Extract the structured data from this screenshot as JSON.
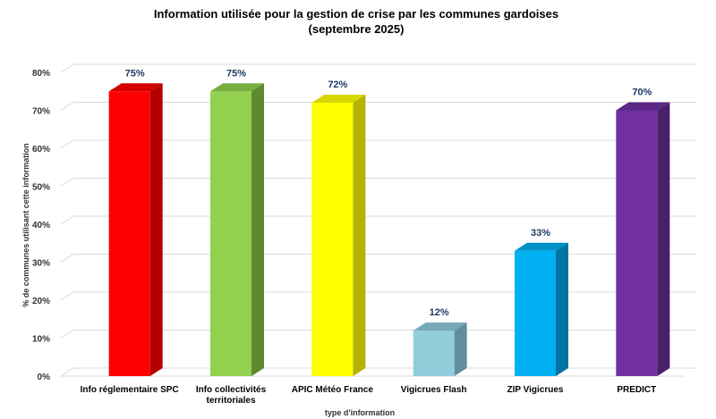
{
  "chart_data": {
    "type": "bar",
    "title_lines": [
      "Information utilisée pour la gestion de crise par les communes gardoises",
      "(septembre 2025)"
    ],
    "xlabel": "type d'information",
    "ylabel": "% de communes utilisant cette information",
    "ylim": [
      0,
      80
    ],
    "yticks": [
      "0%",
      "10%",
      "20%",
      "30%",
      "40%",
      "50%",
      "60%",
      "70%",
      "80%"
    ],
    "grid": true,
    "style": "3d-columns",
    "categories": [
      [
        "Info réglementaire SPC"
      ],
      [
        "Info collectivités",
        "territoriales"
      ],
      [
        "APIC Météo France"
      ],
      [
        "Vigicrues Flash"
      ],
      [
        "ZIP Vigicrues"
      ],
      [
        "PREDICT"
      ]
    ],
    "values": [
      75,
      75,
      72,
      12,
      33,
      70
    ],
    "data_labels": [
      "75%",
      "75%",
      "72%",
      "12%",
      "33%",
      "70%"
    ],
    "colors": [
      "#ff0000",
      "#92d050",
      "#ffff00",
      "#92cddc",
      "#00b0f0",
      "#7030a0"
    ],
    "side_colors": [
      "#b30000",
      "#5e8a2e",
      "#b3b300",
      "#5f8f9b",
      "#0075a3",
      "#4a1f6b"
    ],
    "top_colors": [
      "#d40000",
      "#78ad40",
      "#d6d600",
      "#77aab8",
      "#0090c8",
      "#5c2785"
    ]
  }
}
